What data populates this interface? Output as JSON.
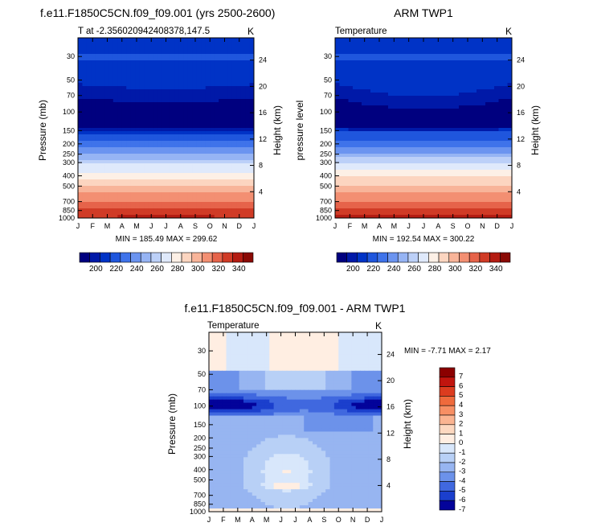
{
  "chart_data": [
    {
      "type": "heatmap",
      "panel": "model",
      "title": "f.e11.F1850C5CN.f09_f09.001 (yrs 2500-2600)",
      "subtitle_left": "T at -2.356020942408378,147.5",
      "subtitle_right": "K",
      "ylabel": "Pressure (mb)",
      "y2label": "Height (km)",
      "x": [
        "J",
        "F",
        "M",
        "A",
        "M",
        "J",
        "J",
        "A",
        "S",
        "O",
        "N",
        "D",
        "J"
      ],
      "pressure_ticks": [
        "30",
        "50",
        "70",
        "100",
        "150",
        "200",
        "250",
        "300",
        "400",
        "500",
        "700",
        "850",
        "1000"
      ],
      "height_ticks": [
        "24",
        "20",
        "16",
        "12",
        "8",
        "4"
      ],
      "ylim": [
        1000,
        20
      ],
      "stats": "MIN = 185.49 MAX = 299.62",
      "colorbar_labels": [
        "200",
        "220",
        "240",
        "260",
        "280",
        "300",
        "320",
        "340"
      ],
      "vertical_profile_K": [
        [
          20,
          205
        ],
        [
          30,
          208
        ],
        [
          50,
          202
        ],
        [
          70,
          193
        ],
        [
          100,
          188
        ],
        [
          140,
          190
        ],
        [
          150,
          205
        ],
        [
          200,
          218
        ],
        [
          250,
          231
        ],
        [
          300,
          243
        ],
        [
          400,
          258
        ],
        [
          500,
          268
        ],
        [
          600,
          276
        ],
        [
          700,
          282
        ],
        [
          850,
          292
        ],
        [
          1000,
          298
        ]
      ]
    },
    {
      "type": "heatmap",
      "panel": "obs",
      "title": "ARM TWP1",
      "subtitle_left": "Temperature",
      "subtitle_right": "K",
      "ylabel": "pressure level",
      "y2label": "Height (km)",
      "x": [
        "J",
        "F",
        "M",
        "A",
        "M",
        "J",
        "J",
        "A",
        "S",
        "O",
        "N",
        "D",
        "J"
      ],
      "pressure_ticks": [
        "30",
        "50",
        "70",
        "100",
        "150",
        "200",
        "250",
        "300",
        "400",
        "500",
        "700",
        "850",
        "1000"
      ],
      "height_ticks": [
        "24",
        "20",
        "16",
        "12",
        "8",
        "4"
      ],
      "ylim": [
        1000,
        20
      ],
      "stats": "MIN = 192.54 MAX = 300.22",
      "colorbar_labels": [
        "200",
        "220",
        "240",
        "260",
        "280",
        "300",
        "320",
        "340"
      ],
      "vertical_profile_K": [
        [
          20,
          205
        ],
        [
          30,
          208
        ],
        [
          50,
          202
        ],
        [
          70,
          193
        ],
        [
          100,
          189
        ],
        [
          140,
          191
        ],
        [
          150,
          206
        ],
        [
          200,
          219
        ],
        [
          250,
          232
        ],
        [
          300,
          244
        ],
        [
          400,
          259
        ],
        [
          500,
          269
        ],
        [
          600,
          277
        ],
        [
          700,
          283
        ],
        [
          850,
          293
        ],
        [
          1000,
          299
        ]
      ]
    },
    {
      "type": "heatmap",
      "panel": "difference",
      "title": "f.e11.F1850C5CN.f09_f09.001 - ARM TWP1",
      "subtitle_left": "Temperature",
      "subtitle_right": "K",
      "ylabel": "Pressure (mb)",
      "y2label": "Height (km)",
      "x": [
        "J",
        "F",
        "M",
        "A",
        "M",
        "J",
        "J",
        "A",
        "S",
        "O",
        "N",
        "D",
        "J"
      ],
      "pressure_ticks": [
        "30",
        "50",
        "70",
        "100",
        "150",
        "200",
        "250",
        "300",
        "400",
        "500",
        "700",
        "850",
        "1000"
      ],
      "height_ticks": [
        "24",
        "20",
        "16",
        "12",
        "8",
        "4"
      ],
      "ylim": [
        1000,
        20
      ],
      "stats": "MIN = -7.71 MAX =  2.17",
      "colorbar_labels": [
        "7",
        "6",
        "5",
        "4",
        "3",
        "2",
        "1",
        "0",
        "-1",
        "-2",
        "-3",
        "-4",
        "-5",
        "-6",
        "-7"
      ]
    }
  ],
  "colors": {
    "temp_scale": [
      "#00007f",
      "#0019a8",
      "#0033c6",
      "#1f56dd",
      "#3f73ea",
      "#6b94f0",
      "#96b4f4",
      "#bcd0f8",
      "#dfe9fb",
      "#fdf0e6",
      "#fcd5c0",
      "#f8b499",
      "#f38f72",
      "#e6634a",
      "#d03b26",
      "#b41c12",
      "#8a0a05"
    ],
    "diff_scale": [
      "#8b0000",
      "#c1150e",
      "#dc3c1f",
      "#ef6a3c",
      "#f78f64",
      "#fbb491",
      "#fdd8c0",
      "#ffeee2",
      "#d8e7fb",
      "#b8d0f6",
      "#97b5f1",
      "#6c92ea",
      "#4068df",
      "#1b3fcd",
      "#03039a"
    ]
  }
}
